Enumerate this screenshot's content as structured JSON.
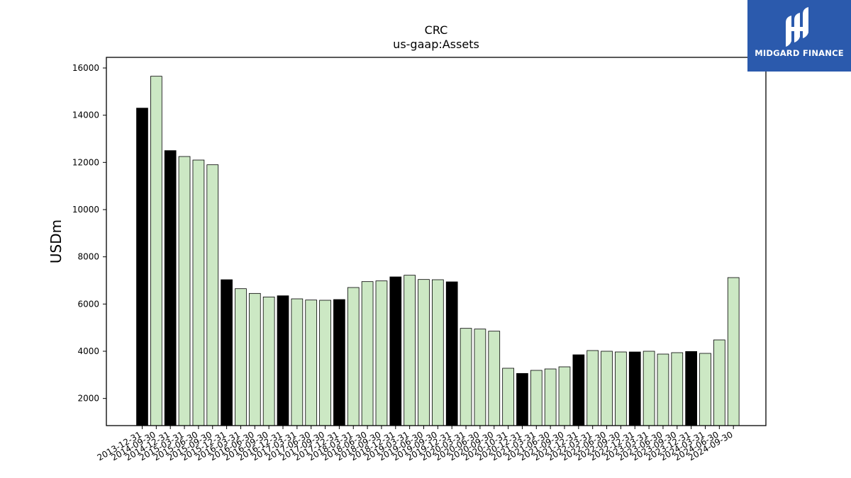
{
  "chart_data": {
    "type": "bar",
    "title": "CRC",
    "subtitle": "us-gaap:Assets",
    "xlabel": "",
    "ylabel": "USDm",
    "ylim": [
      850,
      16450
    ],
    "yticks": [
      2000,
      4000,
      6000,
      8000,
      10000,
      12000,
      14000,
      16000
    ],
    "grid": false,
    "colors": {
      "annual": "#000000",
      "quarterly": "#cce8c4",
      "edge": "#000000"
    },
    "categories": [
      "2013-12-31",
      "2014-09-30",
      "2014-12-31",
      "2015-03-31",
      "2015-06-30",
      "2015-09-30",
      "2015-12-31",
      "2016-03-31",
      "2016-06-30",
      "2016-09-30",
      "2016-12-31",
      "2017-03-31",
      "2017-06-30",
      "2017-09-30",
      "2017-12-31",
      "2018-03-31",
      "2018-06-30",
      "2018-09-30",
      "2018-12-31",
      "2019-03-31",
      "2019-06-30",
      "2019-09-30",
      "2019-12-31",
      "2020-03-31",
      "2020-06-30",
      "2020-09-30",
      "2020-10-31",
      "2020-12-31",
      "2021-03-31",
      "2021-06-30",
      "2021-09-30",
      "2021-12-31",
      "2022-03-31",
      "2022-06-30",
      "2022-09-30",
      "2022-12-31",
      "2023-03-31",
      "2023-06-30",
      "2023-09-30",
      "2023-12-31",
      "2024-03-31",
      "2024-06-30",
      "2024-09-30"
    ],
    "values": [
      14300,
      15650,
      12500,
      12250,
      12100,
      11900,
      7030,
      6650,
      6450,
      6300,
      6350,
      6220,
      6170,
      6160,
      6190,
      6700,
      6950,
      6980,
      7150,
      7220,
      7040,
      7030,
      6940,
      4970,
      4940,
      4850,
      3280,
      3060,
      3190,
      3250,
      3340,
      3850,
      4030,
      4000,
      3970,
      3970,
      4000,
      3880,
      3940,
      3990,
      3910,
      4480,
      7120
    ],
    "annual_flags": [
      true,
      false,
      true,
      false,
      false,
      false,
      true,
      false,
      false,
      false,
      true,
      false,
      false,
      false,
      true,
      false,
      false,
      false,
      true,
      false,
      false,
      false,
      true,
      false,
      false,
      false,
      false,
      true,
      false,
      false,
      false,
      true,
      false,
      false,
      false,
      true,
      false,
      false,
      false,
      true,
      false,
      false,
      false
    ]
  },
  "logo": {
    "text": "MIDGARD FINANCE",
    "icon": "midgard-logo-icon"
  }
}
